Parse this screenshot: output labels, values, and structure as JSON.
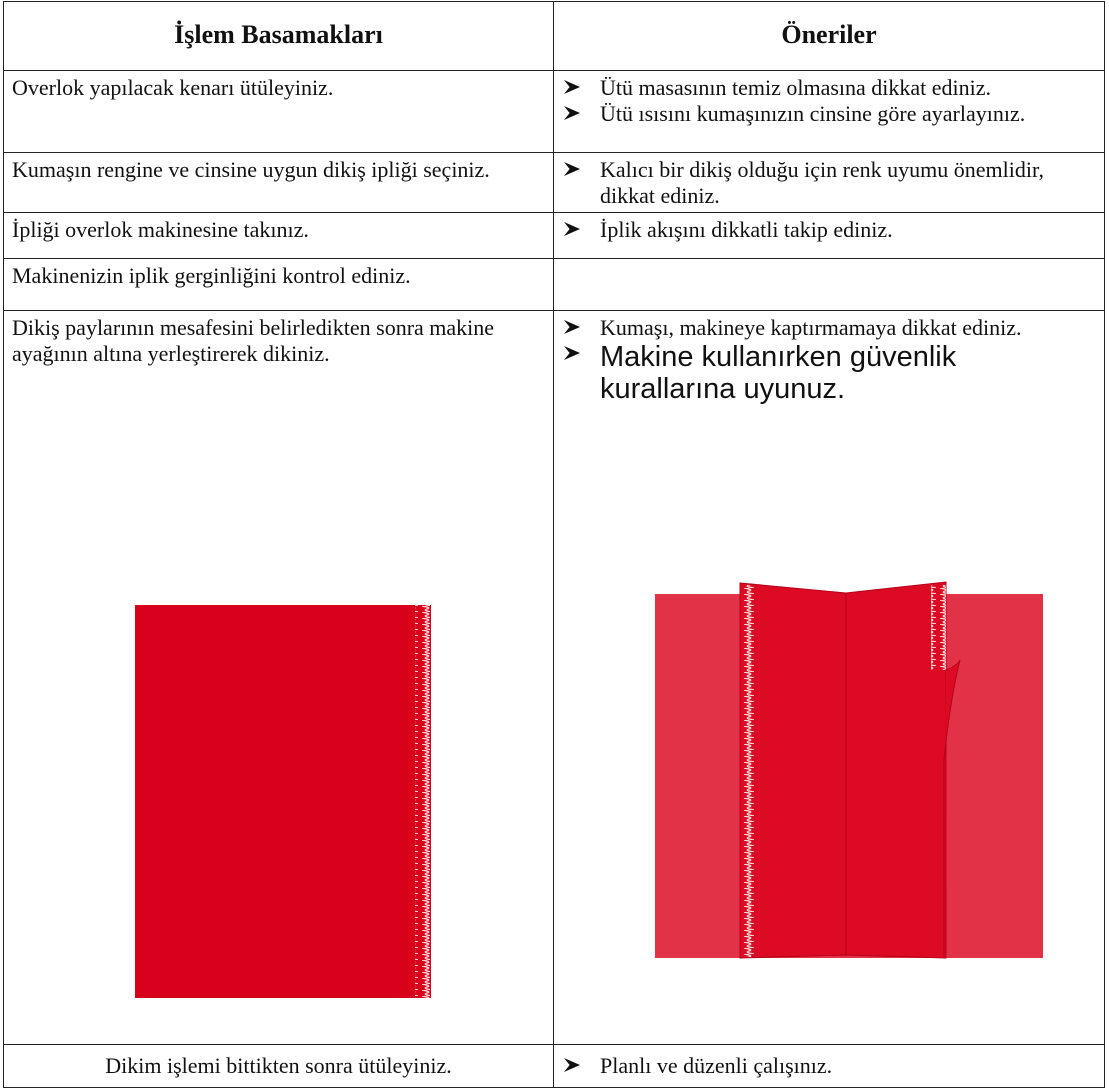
{
  "header": {
    "steps": "İşlem Basamakları",
    "suggestions": "Öneriler"
  },
  "rows": [
    {
      "step": "Overlok yapılacak kenarı ütüleyiniz.",
      "suggestions": [
        "Ütü masasının temiz olmasına dikkat ediniz.",
        "Ütü ısısını kumaşınızın cinsine göre ayarlayınız."
      ]
    },
    {
      "step": "Kumaşın rengine ve cinsine uygun dikiş ipliği seçiniz.",
      "suggestions": [
        "Kalıcı bir dikiş olduğu için renk uyumu önemlidir,  dikkat ediniz."
      ]
    },
    {
      "step": "İpliği overlok   makinesine takınız.",
      "suggestions": [
        "İplik akışını dikkatli takip ediniz."
      ]
    },
    {
      "step": "Makinenizin iplik gerginliğini kontrol ediniz.",
      "suggestions": []
    },
    {
      "step": "Dikiş paylarının mesafesini belirledikten sonra makine ayağının altına yerleştirerek dikiniz.",
      "suggestions": [
        "Kumaşı, makineye kaptırmamaya dikkat ediniz.",
        "Makine kullanırken güvenlik kurallarına uyunuz."
      ]
    },
    {
      "step": "Dikim işlemi bittikten sonra ütüleyiniz.",
      "suggestions": [
        "Planlı ve düzenli çalışınız."
      ]
    }
  ]
}
